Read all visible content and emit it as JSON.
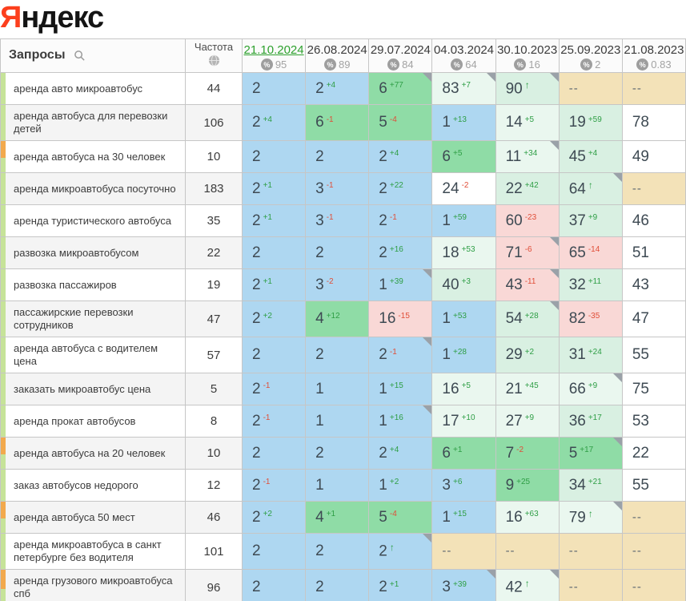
{
  "logo": {
    "first": "Я",
    "rest": "ндекс"
  },
  "colors": {
    "brand_red": "#fc3f1d",
    "active_date": "#2ea12e",
    "up": "#2e9e45",
    "down": "#e04e38",
    "blue": "#aed7f1",
    "green": "#8fdca6",
    "pale": "#eaf7ef",
    "pale2": "#d9f0e2",
    "pink": "#f9d8d6",
    "tan": "#f3e2b8",
    "stripe_green": "#c6e399",
    "stripe_orange": "#f2a94d"
  },
  "table": {
    "queries_header": "Запросы",
    "frequency_header": "Частота",
    "dates": [
      {
        "label": "21.10.2024",
        "visibility": "95",
        "active": true
      },
      {
        "label": "26.08.2024",
        "visibility": "89",
        "active": false
      },
      {
        "label": "29.07.2024",
        "visibility": "84",
        "active": false
      },
      {
        "label": "04.03.2024",
        "visibility": "64",
        "active": false
      },
      {
        "label": "30.10.2023",
        "visibility": "16",
        "active": false
      },
      {
        "label": "25.09.2023",
        "visibility": "2",
        "active": false
      },
      {
        "label": "21.08.2023",
        "visibility": "0.83",
        "active": false
      }
    ],
    "rows": [
      {
        "keyword": "аренда авто микроавтобус",
        "frequency": "44",
        "stripe": "green",
        "cells": [
          {
            "v": "2",
            "bg": "blue"
          },
          {
            "v": "2",
            "d": "+4",
            "bg": "blue"
          },
          {
            "v": "6",
            "d": "+77",
            "bg": "green",
            "corner": true
          },
          {
            "v": "83",
            "d": "+7",
            "bg": "pale",
            "corner": true
          },
          {
            "v": "90",
            "d": "↑",
            "bg": "pale2",
            "corner": true
          },
          {
            "v": "--",
            "bg": "tan"
          },
          {
            "v": "--",
            "bg": "tan"
          }
        ]
      },
      {
        "keyword": "аренда автобуса для перевозки детей",
        "frequency": "106",
        "stripe": "green",
        "cells": [
          {
            "v": "2",
            "d": "+4",
            "bg": "blue"
          },
          {
            "v": "6",
            "d": "-1",
            "bg": "green"
          },
          {
            "v": "5",
            "d": "-4",
            "bg": "green"
          },
          {
            "v": "1",
            "d": "+13",
            "bg": "blue"
          },
          {
            "v": "14",
            "d": "+5",
            "bg": "pale"
          },
          {
            "v": "19",
            "d": "+59",
            "bg": "pale2"
          },
          {
            "v": "78",
            "bg": "white"
          }
        ]
      },
      {
        "keyword": "аренда автобуса на 30 человек",
        "frequency": "10",
        "stripe": "orange",
        "cells": [
          {
            "v": "2",
            "bg": "blue"
          },
          {
            "v": "2",
            "bg": "blue"
          },
          {
            "v": "2",
            "d": "+4",
            "bg": "blue"
          },
          {
            "v": "6",
            "d": "+5",
            "bg": "green"
          },
          {
            "v": "11",
            "d": "+34",
            "bg": "pale",
            "corner": true
          },
          {
            "v": "45",
            "d": "+4",
            "bg": "pale2"
          },
          {
            "v": "49",
            "bg": "white"
          }
        ]
      },
      {
        "keyword": "аренда микроавтобуса посуточно",
        "frequency": "183",
        "stripe": "green",
        "cells": [
          {
            "v": "2",
            "d": "+1",
            "bg": "blue"
          },
          {
            "v": "3",
            "d": "-1",
            "bg": "blue"
          },
          {
            "v": "2",
            "d": "+22",
            "bg": "blue"
          },
          {
            "v": "24",
            "d": "-2",
            "bg": "white"
          },
          {
            "v": "22",
            "d": "+42",
            "bg": "pale2"
          },
          {
            "v": "64",
            "d": "↑",
            "bg": "pale2",
            "corner": true
          },
          {
            "v": "--",
            "bg": "tan"
          }
        ]
      },
      {
        "keyword": "аренда туристического автобуса",
        "frequency": "35",
        "stripe": "green",
        "cells": [
          {
            "v": "2",
            "d": "+1",
            "bg": "blue"
          },
          {
            "v": "3",
            "d": "-1",
            "bg": "blue"
          },
          {
            "v": "2",
            "d": "-1",
            "bg": "blue"
          },
          {
            "v": "1",
            "d": "+59",
            "bg": "blue"
          },
          {
            "v": "60",
            "d": "-23",
            "bg": "pink"
          },
          {
            "v": "37",
            "d": "+9",
            "bg": "pale2"
          },
          {
            "v": "46",
            "bg": "white"
          }
        ]
      },
      {
        "keyword": "развозка микроавтобусом",
        "frequency": "22",
        "stripe": "green",
        "cells": [
          {
            "v": "2",
            "bg": "blue"
          },
          {
            "v": "2",
            "bg": "blue"
          },
          {
            "v": "2",
            "d": "+16",
            "bg": "blue"
          },
          {
            "v": "18",
            "d": "+53",
            "bg": "pale"
          },
          {
            "v": "71",
            "d": "-6",
            "bg": "pink",
            "corner": true
          },
          {
            "v": "65",
            "d": "-14",
            "bg": "pink"
          },
          {
            "v": "51",
            "bg": "white"
          }
        ]
      },
      {
        "keyword": "развозка пассажиров",
        "frequency": "19",
        "stripe": "green",
        "cells": [
          {
            "v": "2",
            "d": "+1",
            "bg": "blue"
          },
          {
            "v": "3",
            "d": "-2",
            "bg": "blue"
          },
          {
            "v": "1",
            "d": "+39",
            "bg": "blue",
            "corner": true
          },
          {
            "v": "40",
            "d": "+3",
            "bg": "pale2"
          },
          {
            "v": "43",
            "d": "-11",
            "bg": "pink",
            "corner": true
          },
          {
            "v": "32",
            "d": "+11",
            "bg": "pale2"
          },
          {
            "v": "43",
            "bg": "white"
          }
        ]
      },
      {
        "keyword": "пассажирские перевозки сотрудников",
        "frequency": "47",
        "stripe": "green",
        "cells": [
          {
            "v": "2",
            "d": "+2",
            "bg": "blue"
          },
          {
            "v": "4",
            "d": "+12",
            "bg": "green"
          },
          {
            "v": "16",
            "d": "-15",
            "bg": "pink"
          },
          {
            "v": "1",
            "d": "+53",
            "bg": "blue"
          },
          {
            "v": "54",
            "d": "+28",
            "bg": "pale2",
            "corner": true
          },
          {
            "v": "82",
            "d": "-35",
            "bg": "pink"
          },
          {
            "v": "47",
            "bg": "white"
          }
        ]
      },
      {
        "keyword": "аренда автобуса с водителем цена",
        "frequency": "57",
        "stripe": "green",
        "cells": [
          {
            "v": "2",
            "bg": "blue"
          },
          {
            "v": "2",
            "bg": "blue"
          },
          {
            "v": "2",
            "d": "-1",
            "bg": "blue",
            "corner": true
          },
          {
            "v": "1",
            "d": "+28",
            "bg": "blue"
          },
          {
            "v": "29",
            "d": "+2",
            "bg": "pale2"
          },
          {
            "v": "31",
            "d": "+24",
            "bg": "pale2"
          },
          {
            "v": "55",
            "bg": "white"
          }
        ]
      },
      {
        "keyword": "заказать микроавтобус цена",
        "frequency": "5",
        "stripe": "green",
        "cells": [
          {
            "v": "2",
            "d": "-1",
            "bg": "blue"
          },
          {
            "v": "1",
            "bg": "blue"
          },
          {
            "v": "1",
            "d": "+15",
            "bg": "blue"
          },
          {
            "v": "16",
            "d": "+5",
            "bg": "pale"
          },
          {
            "v": "21",
            "d": "+45",
            "bg": "pale"
          },
          {
            "v": "66",
            "d": "+9",
            "bg": "pale",
            "corner": true
          },
          {
            "v": "75",
            "bg": "white"
          }
        ]
      },
      {
        "keyword": "аренда прокат автобусов",
        "frequency": "8",
        "stripe": "green",
        "cells": [
          {
            "v": "2",
            "d": "-1",
            "bg": "blue"
          },
          {
            "v": "1",
            "bg": "blue"
          },
          {
            "v": "1",
            "d": "+16",
            "bg": "blue",
            "corner": true
          },
          {
            "v": "17",
            "d": "+10",
            "bg": "pale"
          },
          {
            "v": "27",
            "d": "+9",
            "bg": "pale"
          },
          {
            "v": "36",
            "d": "+17",
            "bg": "pale2"
          },
          {
            "v": "53",
            "bg": "white"
          }
        ]
      },
      {
        "keyword": "аренда автобуса на 20 человек",
        "frequency": "10",
        "stripe": "orange",
        "cells": [
          {
            "v": "2",
            "bg": "blue"
          },
          {
            "v": "2",
            "bg": "blue"
          },
          {
            "v": "2",
            "d": "+4",
            "bg": "blue"
          },
          {
            "v": "6",
            "d": "+1",
            "bg": "green"
          },
          {
            "v": "7",
            "d": "-2",
            "bg": "green"
          },
          {
            "v": "5",
            "d": "+17",
            "bg": "green",
            "corner": true
          },
          {
            "v": "22",
            "bg": "white"
          }
        ]
      },
      {
        "keyword": "заказ автобусов недорого",
        "frequency": "12",
        "stripe": "green",
        "cells": [
          {
            "v": "2",
            "d": "-1",
            "bg": "blue"
          },
          {
            "v": "1",
            "bg": "blue"
          },
          {
            "v": "1",
            "d": "+2",
            "bg": "blue"
          },
          {
            "v": "3",
            "d": "+6",
            "bg": "blue"
          },
          {
            "v": "9",
            "d": "+25",
            "bg": "green"
          },
          {
            "v": "34",
            "d": "+21",
            "bg": "pale2"
          },
          {
            "v": "55",
            "bg": "white"
          }
        ]
      },
      {
        "keyword": "аренда автобуса 50 мест",
        "frequency": "46",
        "stripe": "orange",
        "cells": [
          {
            "v": "2",
            "d": "+2",
            "bg": "blue"
          },
          {
            "v": "4",
            "d": "+1",
            "bg": "green"
          },
          {
            "v": "5",
            "d": "-4",
            "bg": "green"
          },
          {
            "v": "1",
            "d": "+15",
            "bg": "blue"
          },
          {
            "v": "16",
            "d": "+63",
            "bg": "pale"
          },
          {
            "v": "79",
            "d": "↑",
            "bg": "pale",
            "corner": true
          },
          {
            "v": "--",
            "bg": "tan"
          }
        ]
      },
      {
        "keyword": "аренда микроавтобуса в санкт петербурге без водителя",
        "frequency": "101",
        "stripe": "green",
        "cells": [
          {
            "v": "2",
            "bg": "blue"
          },
          {
            "v": "2",
            "bg": "blue"
          },
          {
            "v": "2",
            "d": "↑",
            "bg": "blue",
            "corner": true
          },
          {
            "v": "--",
            "bg": "tan"
          },
          {
            "v": "--",
            "bg": "tan"
          },
          {
            "v": "--",
            "bg": "tan"
          },
          {
            "v": "--",
            "bg": "tan"
          }
        ]
      },
      {
        "keyword": "аренда грузового микроавтобуса спб",
        "frequency": "96",
        "stripe": "orange",
        "cells": [
          {
            "v": "2",
            "bg": "blue"
          },
          {
            "v": "2",
            "bg": "blue"
          },
          {
            "v": "2",
            "d": "+1",
            "bg": "blue"
          },
          {
            "v": "3",
            "d": "+39",
            "bg": "blue",
            "corner": true
          },
          {
            "v": "42",
            "d": "↑",
            "bg": "pale",
            "corner": true
          },
          {
            "v": "--",
            "bg": "tan"
          },
          {
            "v": "--",
            "bg": "tan"
          }
        ]
      }
    ],
    "partial_row": {
      "bgs": [
        "blue",
        "blue",
        "blue",
        "blue",
        "pale",
        "tan",
        "tan"
      ]
    }
  }
}
